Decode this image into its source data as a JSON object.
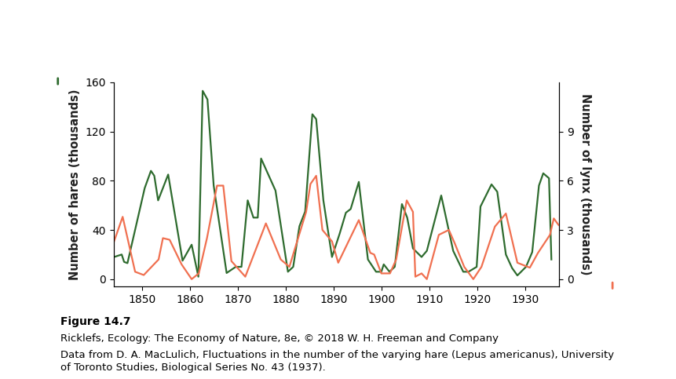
{
  "chart_data": {
    "type": "line",
    "ylabel": "Number of hares (thousands)",
    "y2label": "Number of lynx (thousands)",
    "caption_title": "Figure 14.7",
    "caption_lines": [
      "Ricklefs, Ecology: The Economy of Nature, 8e, © 2018 W. H. Freeman and Company",
      "Data from D. A. MacLulich, Fluctuations in the number of the varying hare (Lepus americanus), University",
      "of Toronto Studies, Biological Series No. 43 (1937)."
    ],
    "xlim": [
      1844,
      1937
    ],
    "xticks": [
      1850,
      1860,
      1870,
      1880,
      1890,
      1900,
      1910,
      1920,
      1930
    ],
    "ylim": [
      -6,
      160
    ],
    "yticks": [
      0,
      40,
      80,
      120,
      160
    ],
    "y2lim": [
      -0.45,
      12
    ],
    "y2ticks": [
      0,
      3,
      6,
      9
    ],
    "series": [
      {
        "name": "Number of hares (thousands)",
        "color": "#2e6b2e",
        "axis": "y",
        "x": [
          1844.1,
          1845.7,
          1846.2,
          1846.9,
          1850.5,
          1851.8,
          1852.5,
          1853.3,
          1854.1,
          1855.4,
          1858.4,
          1860.3,
          1861.7,
          1862.6,
          1863.6,
          1864.9,
          1867.6,
          1869.5,
          1870.7,
          1872.0,
          1873.2,
          1874.1,
          1874.8,
          1877.8,
          1880.4,
          1881.5,
          1882.8,
          1884.0,
          1885.5,
          1886.3,
          1887.8,
          1889.6,
          1891.2,
          1892.5,
          1893.5,
          1895.2,
          1897.1,
          1898.8,
          1899.9,
          1900.4,
          1901.6,
          1902.7,
          1904.2,
          1905.3,
          1906.5,
          1908.3,
          1909.4,
          1912.4,
          1914.9,
          1917.0,
          1918.1,
          1919.8,
          1920.6,
          1922.9,
          1924.1,
          1925.9,
          1927.2,
          1928.3,
          1930.1,
          1931.4,
          1932.8,
          1933.7,
          1934.9,
          1935.4
        ],
        "values": [
          18,
          20,
          14,
          13,
          74,
          88,
          84,
          64,
          72,
          85,
          15,
          28,
          2,
          153,
          146,
          76,
          5,
          10,
          10,
          64,
          50,
          50,
          98,
          72,
          6,
          10,
          43,
          55,
          134,
          130,
          64,
          18,
          37,
          54,
          57,
          79,
          16,
          6,
          6,
          12,
          6,
          10,
          61,
          50,
          25,
          18,
          23,
          68,
          23,
          6,
          6,
          10,
          59,
          77,
          71,
          20,
          9,
          3,
          10,
          22,
          76,
          86,
          82,
          16
        ]
      },
      {
        "name": "Number of lynx (thousands)",
        "color": "#f07050",
        "axis": "y2",
        "x": [
          1844.1,
          1845.9,
          1848.5,
          1850.3,
          1853.4,
          1854.3,
          1855.7,
          1858.2,
          1860.3,
          1861.8,
          1863.5,
          1865.6,
          1866.9,
          1868.6,
          1871.5,
          1875.8,
          1878.9,
          1880.7,
          1884.2,
          1885.1,
          1886.3,
          1887.6,
          1889.6,
          1890.9,
          1895.2,
          1897.6,
          1898.4,
          1899.9,
          1901.7,
          1903.0,
          1905.2,
          1906.5,
          1907.0,
          1908.3,
          1909.4,
          1911.9,
          1914.0,
          1915.2,
          1917.2,
          1919.1,
          1920.8,
          1923.6,
          1925.9,
          1928.3,
          1930.9,
          1932.6,
          1935.1,
          1935.9,
          1936.9
        ],
        "values": [
          2.3,
          3.8,
          0.45,
          0.25,
          1.2,
          2.5,
          2.4,
          0.9,
          0.0,
          0.35,
          2.5,
          5.7,
          5.7,
          1.1,
          0.15,
          3.4,
          1.2,
          0.75,
          4.1,
          5.8,
          6.3,
          3.0,
          2.3,
          1.0,
          3.6,
          1.6,
          1.5,
          0.35,
          0.35,
          1.2,
          4.8,
          4.1,
          0.15,
          0.35,
          0.0,
          2.7,
          3.0,
          2.2,
          0.75,
          0.0,
          0.75,
          3.2,
          4.0,
          1.0,
          0.7,
          1.6,
          2.7,
          3.7,
          3.3
        ]
      }
    ]
  }
}
